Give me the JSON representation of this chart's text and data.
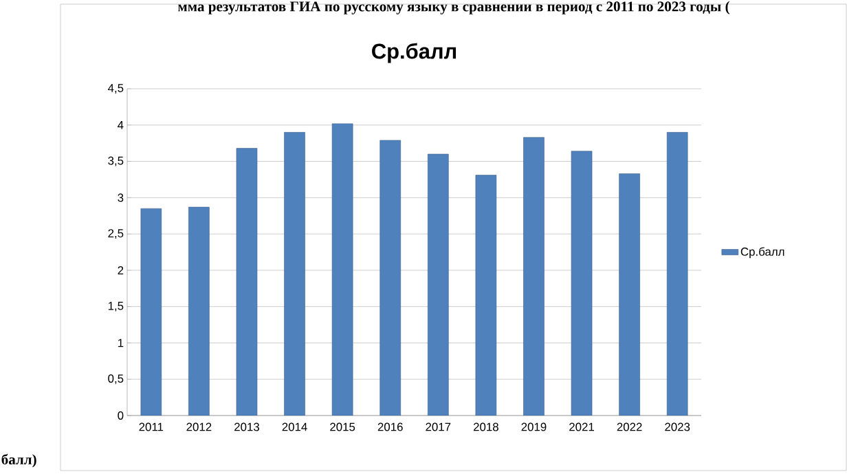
{
  "chart_data": {
    "type": "bar",
    "title": "Ср.балл",
    "annotations": [
      "мма результатов ГИА по русскому языку в сравнении в период с 2011 по 2023 годы (",
      "балл)"
    ],
    "categories": [
      "2011",
      "2012",
      "2013",
      "2014",
      "2015",
      "2016",
      "2017",
      "2018",
      "2019",
      "2021",
      "2022",
      "2023"
    ],
    "series": [
      {
        "name": "Ср.балл",
        "color": "#4f81bd",
        "values": [
          2.85,
          2.87,
          3.68,
          3.9,
          4.02,
          3.79,
          3.6,
          3.31,
          3.83,
          3.64,
          3.33,
          3.9
        ]
      }
    ],
    "ylim": [
      0,
      4.5
    ],
    "yticks": [
      0,
      {
        "value": 0.5,
        "label": "0,5"
      },
      1,
      {
        "value": 1.5,
        "label": "1,5"
      },
      2,
      {
        "value": 2.5,
        "label": "2,5"
      },
      3,
      {
        "value": 3.5,
        "label": "3,5"
      },
      4,
      {
        "value": 4.5,
        "label": "4,5"
      }
    ],
    "grid": "y",
    "legend": "right"
  }
}
